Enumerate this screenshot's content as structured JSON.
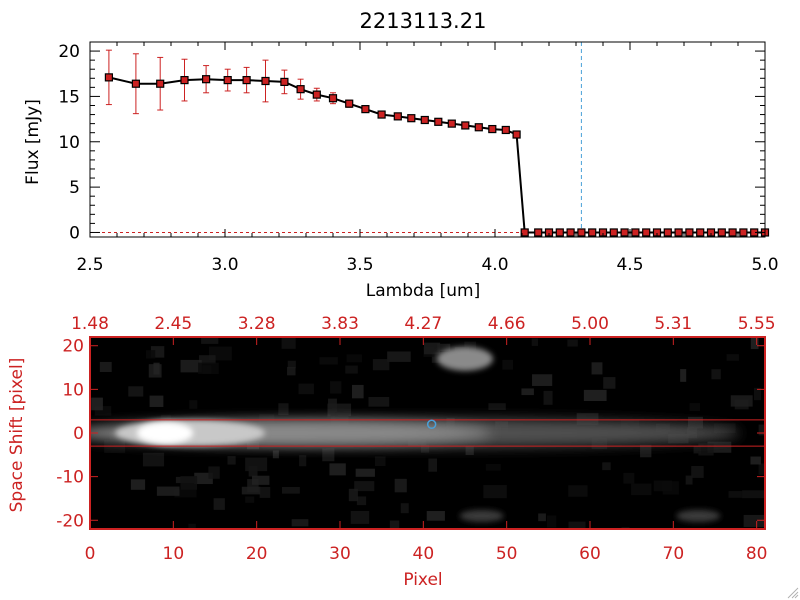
{
  "chart_data": [
    {
      "type": "line",
      "title": "2213113.21",
      "xlabel": "Lambda [um]",
      "ylabel": "Flux [mJy]",
      "xlim": [
        2.5,
        5.0
      ],
      "ylim": [
        -0.5,
        21
      ],
      "x_tick_labels": [
        "2.5",
        "3.0",
        "3.5",
        "4.0",
        "4.5",
        "5.0"
      ],
      "x_tick_values": [
        2.5,
        3.0,
        3.5,
        4.0,
        4.5,
        5.0
      ],
      "y_tick_labels": [
        "0",
        "5",
        "10",
        "15",
        "20"
      ],
      "y_tick_values": [
        0,
        5,
        10,
        15,
        20
      ],
      "series": [
        {
          "x": [
            2.57,
            2.67,
            2.76,
            2.85,
            2.93,
            3.01,
            3.08,
            3.15,
            3.22,
            3.28,
            3.34,
            3.4,
            3.46,
            3.52,
            3.58,
            3.64,
            3.69,
            3.74,
            3.79,
            3.84,
            3.89,
            3.94,
            3.99,
            4.04,
            4.08,
            4.11,
            4.16,
            4.2,
            4.24,
            4.28,
            4.32,
            4.36,
            4.4,
            4.44,
            4.48,
            4.52,
            4.56,
            4.6,
            4.64,
            4.68,
            4.72,
            4.76,
            4.8,
            4.84,
            4.88,
            4.92,
            4.96,
            5.0
          ],
          "values": [
            17.1,
            16.4,
            16.4,
            16.8,
            16.9,
            16.8,
            16.8,
            16.7,
            16.6,
            15.8,
            15.2,
            14.8,
            14.2,
            13.6,
            13.0,
            12.8,
            12.6,
            12.4,
            12.2,
            12.0,
            11.8,
            11.6,
            11.4,
            11.3,
            10.8,
            0,
            0,
            0,
            0,
            0,
            0,
            0,
            0,
            0,
            0,
            0,
            0,
            0,
            0,
            0,
            0,
            0,
            0,
            0,
            0,
            0,
            0,
            0
          ],
          "errors": [
            3.0,
            3.3,
            2.9,
            2.3,
            1.5,
            1.2,
            1.4,
            2.3,
            1.3,
            1.1,
            0.7,
            0.6,
            0.4,
            0.3,
            0.3,
            0.2,
            0.2,
            0.2,
            0.2,
            0.2,
            0.2,
            0.2,
            0.2,
            0.2,
            0.3,
            0,
            0,
            0,
            0,
            0,
            0,
            0,
            0,
            0,
            0,
            0,
            0,
            0,
            0,
            0,
            0,
            0,
            0,
            0,
            0,
            0,
            0,
            0
          ]
        }
      ],
      "vline_x": 4.32,
      "colors": {
        "line": "#000000",
        "marker": "#cc2222",
        "errorbar": "#cc2222",
        "vline": "#4aa0d8"
      }
    },
    {
      "type": "heatmap",
      "xlabel": "Pixel",
      "ylabel": "Space Shift [pixel]",
      "xlim": [
        0,
        81
      ],
      "ylim": [
        -22,
        22
      ],
      "x_tick_labels": [
        "0",
        "10",
        "20",
        "30",
        "40",
        "50",
        "60",
        "70",
        "80"
      ],
      "x_tick_values": [
        0,
        10,
        20,
        30,
        40,
        50,
        60,
        70,
        80
      ],
      "y_tick_labels": [
        "-20",
        "-10",
        "0",
        "10",
        "20"
      ],
      "y_tick_values": [
        -20,
        -10,
        0,
        10,
        20
      ],
      "top_axis_labels": [
        "1.48",
        "2.45",
        "3.28",
        "3.83",
        "4.27",
        "4.66",
        "5.00",
        "5.31",
        "5.55"
      ],
      "extraction_window": [
        -3,
        3
      ],
      "source": {
        "x_start": 5,
        "x_peak": 9,
        "x_end": 78,
        "y_center": 0
      },
      "blob": {
        "x": 45,
        "y": 17
      },
      "marker": {
        "x": 41,
        "y": 2
      },
      "colors": {
        "axes": "#cc2222",
        "window": "#cc2222",
        "marker": "#4aa0d8"
      }
    }
  ]
}
